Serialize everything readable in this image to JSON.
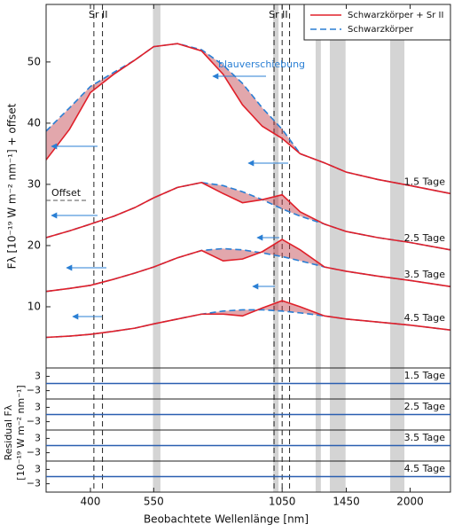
{
  "chart_data": {
    "type": "line",
    "xlabel": "Beobachtete Wellenlänge [nm]",
    "ylabel": "Fλ [10⁻¹⁹ W m⁻² nm⁻¹] + offset",
    "xscale": "log",
    "xlim": [
      320,
      2450
    ],
    "xticks": [
      400,
      550,
      1050,
      1450,
      2000
    ],
    "ylim": [
      0,
      59.4
    ],
    "yticks": [
      10,
      20,
      30,
      40,
      50
    ],
    "legend_position": "upper right",
    "legend": [
      {
        "name": "Schwarzkörper + Sr II",
        "color": "#e0202a",
        "dash": "solid"
      },
      {
        "name": "Schwarzkörper",
        "color": "#2a7fd4",
        "dash": "dashed"
      }
    ],
    "x": [
      320,
      360,
      400,
      450,
      500,
      550,
      620,
      700,
      780,
      860,
      950,
      1050,
      1150,
      1300,
      1450,
      1700,
      2000,
      2450
    ],
    "epochs": [
      {
        "label": "1.5 Tage",
        "model": [
          34,
          39,
          45,
          48,
          50.3,
          52.5,
          53,
          51.8,
          48,
          43,
          39.5,
          37.5,
          35,
          33.5,
          32,
          30.8,
          29.8,
          28.5
        ],
        "blackbody": [
          38.7,
          42.5,
          46,
          48.3,
          50.3,
          52.5,
          53,
          52,
          49.5,
          46.5,
          42.5,
          39,
          35,
          33.5,
          32,
          30.8,
          29.8,
          28.5
        ]
      },
      {
        "label": "2.5 Tage",
        "model": [
          21.3,
          22.4,
          23.5,
          24.8,
          26.2,
          27.8,
          29.5,
          30.3,
          28.5,
          27,
          27.5,
          28.3,
          25.5,
          23.5,
          22.3,
          21.3,
          20.5,
          19.3
        ],
        "blackbody": [
          21.3,
          22.4,
          23.5,
          24.8,
          26.2,
          27.8,
          29.5,
          30.3,
          29.8,
          28.8,
          27.5,
          26,
          24.8,
          23.5,
          22.3,
          21.3,
          20.5,
          19.3
        ]
      },
      {
        "label": "3.5 Tage",
        "model": [
          12.5,
          13,
          13.5,
          14.5,
          15.5,
          16.5,
          18,
          19.2,
          17.5,
          17.8,
          19,
          21,
          19.3,
          16.5,
          15.8,
          15,
          14.3,
          13.3
        ],
        "blackbody": [
          12.5,
          13,
          13.5,
          14.5,
          15.5,
          16.5,
          18,
          19.2,
          19.5,
          19.3,
          18.8,
          18.2,
          17.5,
          16.5,
          15.8,
          15,
          14.3,
          13.3
        ]
      },
      {
        "label": "4.5 Tage",
        "model": [
          5,
          5.2,
          5.5,
          6,
          6.5,
          7.2,
          8,
          8.8,
          8.8,
          8.5,
          9.8,
          11,
          10,
          8.5,
          8,
          7.5,
          7,
          6.2
        ],
        "blackbody": [
          5,
          5.2,
          5.5,
          6,
          6.5,
          7.2,
          8,
          8.8,
          9.3,
          9.5,
          9.5,
          9.3,
          9,
          8.5,
          8,
          7.5,
          7,
          6.2
        ]
      }
    ],
    "masked_regions": [
      [
        548,
        569
      ],
      [
        1004,
        1031
      ],
      [
        1243,
        1276
      ],
      [
        1335,
        1445
      ],
      [
        1809,
        1943
      ]
    ],
    "line_marks": [
      407,
      425,
      1008,
      1050,
      1090
    ],
    "line_labels": [
      {
        "text": "Sr II",
        "x": 416
      },
      {
        "text": "Sr II",
        "x": 1030
      }
    ],
    "annotations": [
      "blauverschiebung",
      "Offset"
    ],
    "residual": {
      "ylabel": [
        "Residual Fλ",
        "[10⁻¹⁹ W m⁻² nm⁻¹]"
      ],
      "ylim": [
        -6.5,
        6.5
      ],
      "yticks": [
        3,
        {
          "value": -3,
          "label": "−3"
        }
      ],
      "panels": [
        "1.5 Tage",
        "2.5 Tage",
        "3.5 Tage",
        "4.5 Tage"
      ]
    }
  }
}
